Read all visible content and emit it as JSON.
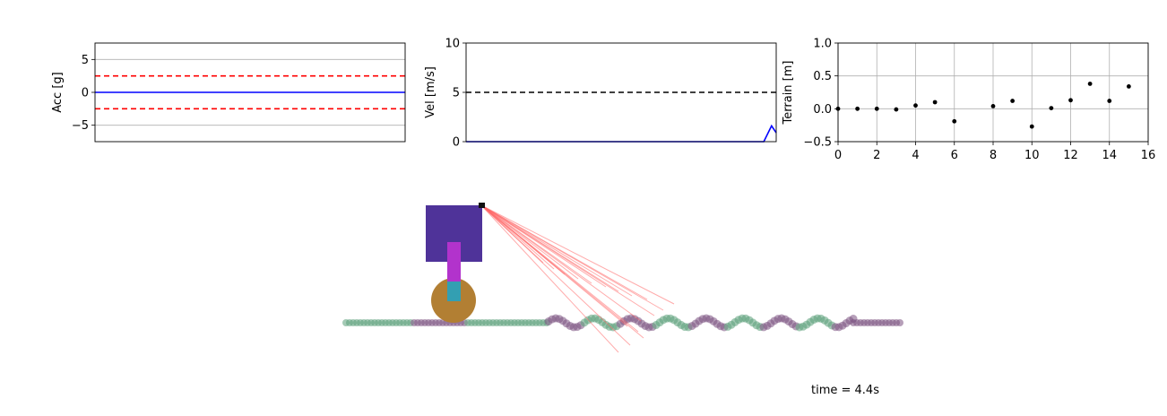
{
  "chart_data": [
    {
      "type": "line",
      "ylabel": "Acc [g]",
      "ylim": [
        -7.5,
        7.5
      ],
      "yticks": [
        "5",
        "0",
        "−5"
      ],
      "ytick_values": [
        5,
        0,
        -5
      ],
      "grid": "horizontal",
      "series": [
        {
          "values": [
            0,
            0
          ],
          "color": "#0000ff",
          "style": "solid"
        },
        {
          "values": [
            2.5,
            2.5
          ],
          "color": "#ff0000",
          "style": "dashed"
        },
        {
          "values": [
            -2.5,
            -2.5
          ],
          "color": "#ff0000",
          "style": "dashed"
        }
      ]
    },
    {
      "type": "line",
      "ylabel": "Vel [m/s]",
      "ylim": [
        0,
        10
      ],
      "yticks": [
        "10",
        "5",
        "0"
      ],
      "ytick_values": [
        10,
        5,
        0
      ],
      "grid": "none",
      "series": [
        {
          "x": [
            0,
            0.96,
            0.985,
            1.0
          ],
          "values": [
            0,
            0,
            1.6,
            0.9
          ],
          "color": "#0000ff",
          "style": "solid"
        },
        {
          "values": [
            5,
            5
          ],
          "color": "#000000",
          "style": "dashed"
        }
      ]
    },
    {
      "type": "scatter",
      "ylabel": "Terrain [m]",
      "xlim": [
        0,
        16
      ],
      "ylim": [
        -0.5,
        1.0
      ],
      "xticks": [
        "0",
        "2",
        "4",
        "6",
        "8",
        "10",
        "12",
        "14",
        "16"
      ],
      "xtick_values": [
        0,
        2,
        4,
        6,
        8,
        10,
        12,
        14,
        16
      ],
      "yticks": [
        "1.0",
        "0.5",
        "0.0",
        "−0.5"
      ],
      "ytick_values": [
        1.0,
        0.5,
        0.0,
        -0.5
      ],
      "grid": "both",
      "points": [
        [
          0,
          0.0
        ],
        [
          1,
          0.0
        ],
        [
          2,
          0.0
        ],
        [
          3,
          -0.01
        ],
        [
          4,
          0.05
        ],
        [
          5,
          0.1
        ],
        [
          6,
          -0.19
        ],
        [
          8,
          0.04
        ],
        [
          9,
          0.12
        ],
        [
          10,
          -0.27
        ],
        [
          11,
          0.01
        ],
        [
          12,
          0.13
        ],
        [
          13,
          0.38
        ],
        [
          14,
          0.12
        ],
        [
          15,
          0.34
        ]
      ]
    }
  ],
  "scene": {
    "time_label": "time = 4.4s",
    "colors": {
      "body": "#4f3399",
      "leg_upper": "#b233cc",
      "leg_lower": "#339fb2",
      "wheel": "#b27f33",
      "terrain_green": "#5a9e78",
      "terrain_purple": "#7a5080",
      "laser": "#ff6666",
      "sensor": "#111111"
    }
  }
}
